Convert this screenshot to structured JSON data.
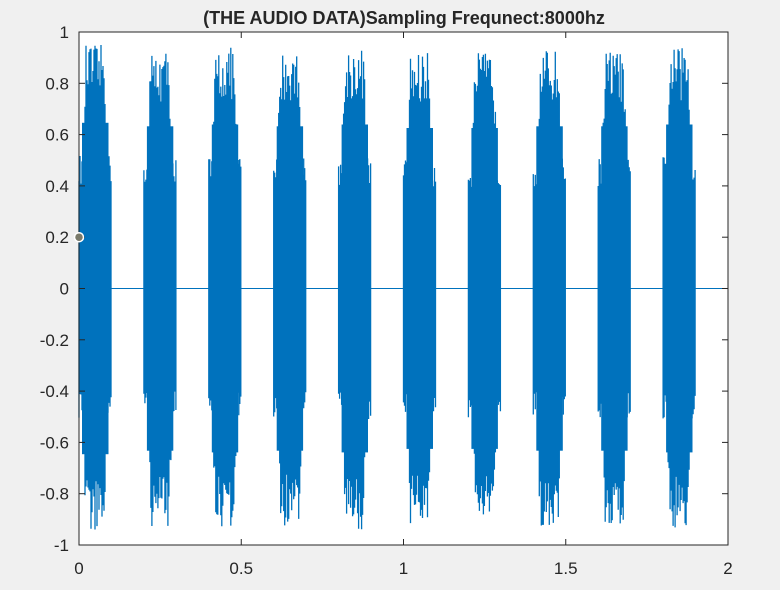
{
  "figure": {
    "background": "#f0f0f0"
  },
  "chart_data": {
    "type": "line",
    "title": "(THE AUDIO DATA)Sampling Frequnect:8000hz",
    "xlabel": "",
    "ylabel": "",
    "xlim": [
      0,
      2
    ],
    "ylim": [
      -1,
      1
    ],
    "x_ticks": [
      0,
      0.5,
      1,
      1.5,
      2
    ],
    "x_tick_labels": [
      "0",
      "0.5",
      "1",
      "1.5",
      "2"
    ],
    "y_ticks": [
      -1,
      -0.8,
      -0.6,
      -0.4,
      -0.2,
      0,
      0.2,
      0.4,
      0.6,
      0.8,
      1
    ],
    "y_tick_labels": [
      "-1",
      "-0.8",
      "-0.6",
      "-0.4",
      "-0.2",
      "0",
      "0.2",
      "0.4",
      "0.6",
      "0.8",
      "1"
    ],
    "grid": false,
    "series_color": "#0072bd",
    "sampling_rate_hz": 8000,
    "signal_bursts": [
      {
        "start": 0.0,
        "end": 0.1,
        "peak": 0.95
      },
      {
        "start": 0.2,
        "end": 0.3,
        "peak": 0.93
      },
      {
        "start": 0.4,
        "end": 0.5,
        "peak": 0.94
      },
      {
        "start": 0.6,
        "end": 0.7,
        "peak": 0.93
      },
      {
        "start": 0.8,
        "end": 0.9,
        "peak": 0.94
      },
      {
        "start": 1.0,
        "end": 1.1,
        "peak": 0.92
      },
      {
        "start": 1.2,
        "end": 1.3,
        "peak": 0.92
      },
      {
        "start": 1.4,
        "end": 1.5,
        "peak": 0.93
      },
      {
        "start": 1.6,
        "end": 1.7,
        "peak": 0.93
      },
      {
        "start": 1.8,
        "end": 1.9,
        "peak": 0.94
      }
    ],
    "marker": {
      "x": 0,
      "y": 0.2,
      "color": "#7a7a6a"
    }
  }
}
